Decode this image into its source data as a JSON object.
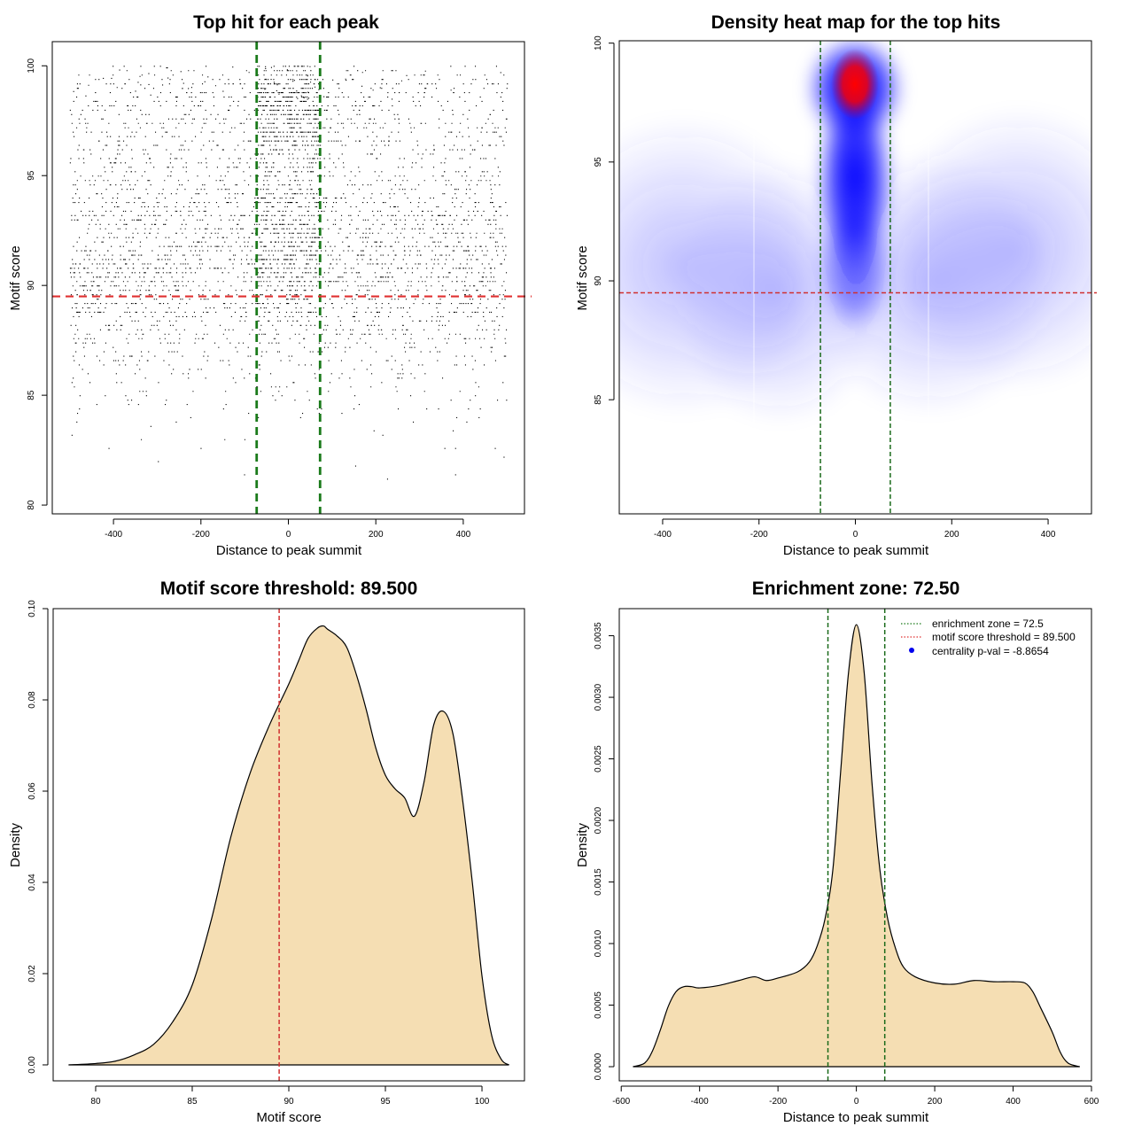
{
  "chart_data": [
    {
      "type": "scatter",
      "title": "Top hit for each peak",
      "xlabel": "Distance to peak summit",
      "ylabel": "Motif score",
      "xlim": [
        -540,
        540
      ],
      "ylim": [
        79.6,
        101.1
      ],
      "xticks": [
        -400,
        -200,
        0,
        200,
        400
      ],
      "yticks": [
        80,
        85,
        90,
        95,
        100
      ],
      "vlines": [
        -72.5,
        72.5
      ],
      "hline": 89.5,
      "colors": {
        "points": "#000000",
        "vlines": "#1a7a1a",
        "hline": "#e03030"
      },
      "grid": false,
      "points_description_values": {
        "x_range": [
          -500,
          500
        ],
        "y_range": [
          80.2,
          100
        ],
        "central_band": [
          -72.5,
          72.5
        ],
        "score_modes": [
          92,
          98
        ],
        "approx_points": 9000
      }
    },
    {
      "type": "heatmap",
      "title": "Density heat map for the top hits",
      "xlabel": "Distance to peak summit",
      "ylabel": "Motif score",
      "xlim": [
        -490,
        490
      ],
      "ylim": [
        80.2,
        100.1
      ],
      "xticks": [
        -400,
        -200,
        0,
        200,
        400
      ],
      "yticks": [
        85,
        90,
        95,
        100
      ],
      "vlines": [
        -72.5,
        72.5
      ],
      "hline": 89.5,
      "colors": {
        "low": "#ffffff",
        "mid": "#0000ff",
        "high": "#ff0000",
        "vlines": "#1a6a1a",
        "hline": "#d03030"
      },
      "hotspot": {
        "x": 0,
        "y": 98.2
      },
      "grid": false
    },
    {
      "type": "area",
      "title": "Motif score threshold: 89.500",
      "xlabel": "Motif score",
      "ylabel": "Density",
      "xlim": [
        77.8,
        102.2
      ],
      "ylim": [
        -0.0035,
        0.1
      ],
      "xticks": [
        80,
        85,
        90,
        95,
        100
      ],
      "yticks": [
        0.0,
        0.02,
        0.04,
        0.06,
        0.08,
        0.1
      ],
      "ytick_labels": [
        "0.00",
        "0.02",
        "0.04",
        "0.06",
        "0.08",
        "0.10"
      ],
      "vline": 89.5,
      "colors": {
        "fill": "#f5deb3",
        "line": "#000000",
        "vline": "#d03030"
      },
      "x": [
        78.6,
        80,
        81,
        82,
        83,
        84,
        85,
        86,
        87,
        88,
        89,
        90,
        90.5,
        91,
        91.5,
        91.8,
        92,
        92.5,
        93,
        93.5,
        94,
        94.5,
        95,
        95.5,
        96,
        96.5,
        97,
        97.5,
        98,
        98.5,
        99,
        99.5,
        100,
        100.5,
        101,
        101.4
      ],
      "y": [
        0,
        0.0003,
        0.0008,
        0.0022,
        0.0045,
        0.0095,
        0.0175,
        0.032,
        0.05,
        0.064,
        0.0745,
        0.0835,
        0.0885,
        0.0935,
        0.0958,
        0.0962,
        0.0955,
        0.094,
        0.0915,
        0.0855,
        0.078,
        0.0695,
        0.0635,
        0.0605,
        0.0585,
        0.0545,
        0.062,
        0.0745,
        0.0775,
        0.0725,
        0.058,
        0.04,
        0.0195,
        0.0065,
        0.0012,
        0
      ]
    },
    {
      "type": "area",
      "title": "Enrichment zone: 72.50",
      "xlabel": "Distance to peak summit",
      "ylabel": "Density",
      "xlim": [
        -605,
        600
      ],
      "ylim": [
        -0.000115,
        0.00372
      ],
      "xticks": [
        -600,
        -400,
        -200,
        0,
        200,
        400,
        600
      ],
      "yticks": [
        0.0,
        0.0005,
        0.001,
        0.0015,
        0.002,
        0.0025,
        0.003,
        0.0035
      ],
      "ytick_labels": [
        "0.0000",
        "0.0005",
        "0.0010",
        "0.0015",
        "0.0020",
        "0.0025",
        "0.0030",
        "0.0035"
      ],
      "vlines": [
        -72.5,
        72.5
      ],
      "colors": {
        "fill": "#f5deb3",
        "line": "#000000",
        "vlines": "#1a6a1a",
        "legend_green": "#1a7a1a",
        "legend_red": "#e03030",
        "legend_blue": "#0000ee"
      },
      "x": [
        -570,
        -540,
        -520,
        -500,
        -480,
        -460,
        -440,
        -420,
        -400,
        -350,
        -300,
        -260,
        -230,
        -200,
        -150,
        -120,
        -100,
        -80,
        -60,
        -40,
        -20,
        0,
        20,
        40,
        60,
        80,
        100,
        120,
        150,
        200,
        250,
        300,
        350,
        400,
        430,
        450,
        470,
        500,
        520,
        540,
        570
      ],
      "y": [
        0,
        3e-05,
        0.00013,
        0.0003,
        0.00049,
        0.00061,
        0.00065,
        0.00065,
        0.00064,
        0.00066,
        0.0007,
        0.00073,
        0.0007,
        0.00072,
        0.00077,
        0.00085,
        0.00098,
        0.0012,
        0.0016,
        0.0024,
        0.0032,
        0.00359,
        0.0032,
        0.0023,
        0.0016,
        0.0012,
        0.00096,
        0.00081,
        0.00073,
        0.00068,
        0.00067,
        0.0007,
        0.00069,
        0.00069,
        0.00068,
        0.00061,
        0.00048,
        0.00028,
        0.00012,
        3e-05,
        0
      ],
      "legend_position": "top-right",
      "legend": [
        {
          "label": "enrichment zone = 72.5",
          "style": "dotted-line",
          "color": "#1a7a1a"
        },
        {
          "label": "motif score threshold = 89.500",
          "style": "dotted-line",
          "color": "#e03030"
        },
        {
          "label": "centrality p-val = -8.8654",
          "style": "point",
          "color": "#0000ee"
        }
      ]
    }
  ]
}
